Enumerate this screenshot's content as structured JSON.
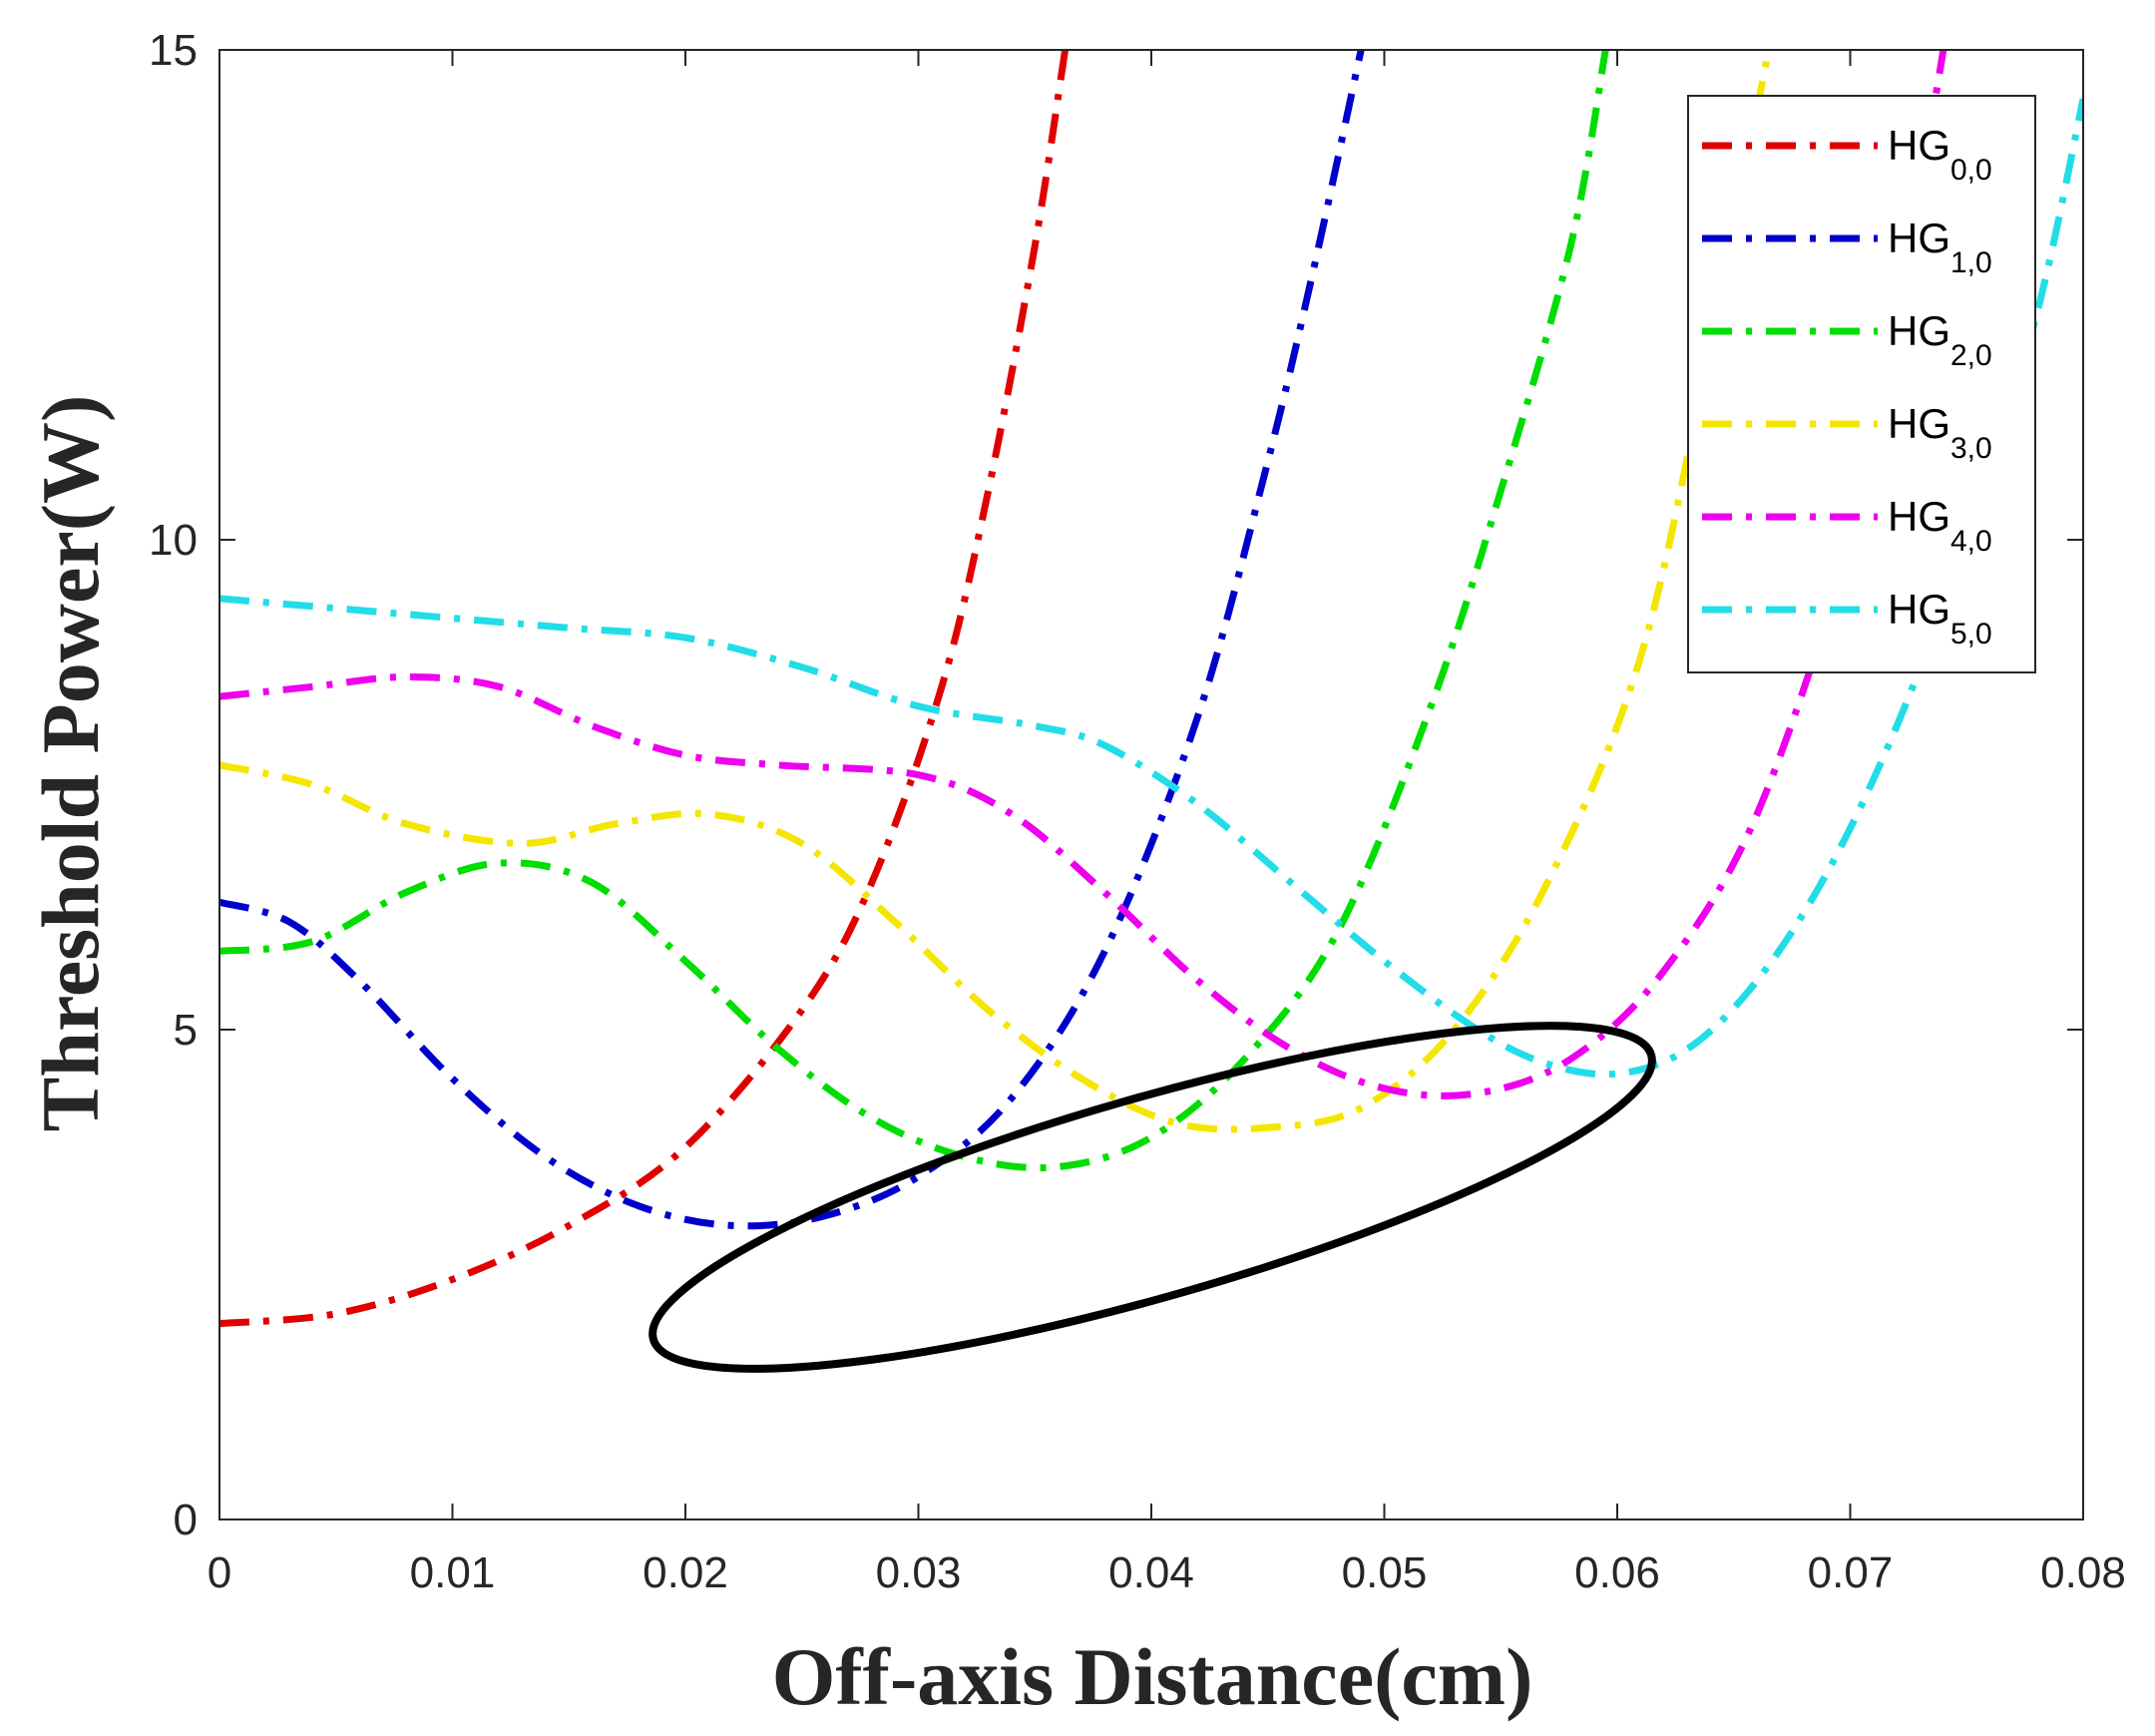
{
  "chart_data": {
    "type": "line",
    "title": "",
    "xlabel": "Off-axis Distance(cm)",
    "ylabel": "Threshold Power(W)",
    "xlim": [
      0,
      0.08
    ],
    "ylim": [
      0,
      15
    ],
    "x_ticks": [
      0,
      0.01,
      0.02,
      0.03,
      0.04,
      0.05,
      0.06,
      0.07,
      0.08
    ],
    "x_tick_labels": [
      "0",
      "0.01",
      "0.02",
      "0.03",
      "0.04",
      "0.05",
      "0.06",
      "0.07",
      "0.08"
    ],
    "y_ticks": [
      0,
      5,
      10,
      15
    ],
    "y_tick_labels": [
      "0",
      "5",
      "10",
      "15"
    ],
    "grid": false,
    "legend_position": "top-right",
    "series": [
      {
        "name": "HG0,0",
        "label_main": "HG",
        "label_sub": "0,0",
        "color": "#e00000",
        "dash": "dash-dot",
        "x": [
          0,
          0.005,
          0.01,
          0.015,
          0.02,
          0.025,
          0.028,
          0.031,
          0.033,
          0.035,
          0.0363
        ],
        "y": [
          2.0,
          2.1,
          2.45,
          3.0,
          3.8,
          5.2,
          6.5,
          8.5,
          10.5,
          13.0,
          15.0
        ]
      },
      {
        "name": "HG1,0",
        "label_main": "HG",
        "label_sub": "1,0",
        "color": "#0000cc",
        "dash": "dash-dot",
        "x": [
          0,
          0.003,
          0.006,
          0.01,
          0.014,
          0.018,
          0.022,
          0.026,
          0.03,
          0.034,
          0.038,
          0.042,
          0.045,
          0.047,
          0.049
        ],
        "y": [
          6.3,
          6.1,
          5.5,
          4.5,
          3.7,
          3.2,
          3.0,
          3.1,
          3.5,
          4.3,
          5.8,
          8.2,
          10.8,
          12.8,
          15.0
        ]
      },
      {
        "name": "HG2,0",
        "label_main": "HG",
        "label_sub": "2,0",
        "color": "#00dd00",
        "dash": "dash-dot",
        "x": [
          0,
          0.004,
          0.008,
          0.012,
          0.016,
          0.02,
          0.024,
          0.028,
          0.032,
          0.036,
          0.04,
          0.044,
          0.048,
          0.052,
          0.055,
          0.058,
          0.0595
        ],
        "y": [
          5.8,
          5.9,
          6.4,
          6.7,
          6.5,
          5.7,
          4.8,
          4.1,
          3.7,
          3.6,
          3.9,
          4.7,
          6.0,
          8.3,
          10.5,
          13.0,
          15.0
        ]
      },
      {
        "name": "HG3,0",
        "label_main": "HG",
        "label_sub": "3,0",
        "color": "#f5e600",
        "dash": "dash-dot",
        "x": [
          0,
          0.004,
          0.008,
          0.013,
          0.017,
          0.021,
          0.025,
          0.029,
          0.033,
          0.037,
          0.041,
          0.045,
          0.049,
          0.053,
          0.057,
          0.061,
          0.064,
          0.0665
        ],
        "y": [
          7.7,
          7.5,
          7.1,
          6.9,
          7.1,
          7.2,
          6.9,
          6.1,
          5.2,
          4.5,
          4.05,
          4.0,
          4.2,
          5.0,
          6.5,
          8.8,
          12.0,
          15.0
        ]
      },
      {
        "name": "HG4,0",
        "label_main": "HG",
        "label_sub": "4,0",
        "color": "#ee00ee",
        "dash": "dash-dot",
        "x": [
          0,
          0.004,
          0.008,
          0.012,
          0.016,
          0.02,
          0.024,
          0.03,
          0.034,
          0.038,
          0.042,
          0.046,
          0.05,
          0.054,
          0.058,
          0.062,
          0.066,
          0.07,
          0.072,
          0.074
        ],
        "y": [
          8.4,
          8.5,
          8.6,
          8.5,
          8.1,
          7.8,
          7.7,
          7.6,
          7.2,
          6.4,
          5.5,
          4.8,
          4.4,
          4.35,
          4.7,
          5.6,
          7.2,
          10.0,
          12.2,
          15.0
        ]
      },
      {
        "name": "HG5,0",
        "label_main": "HG",
        "label_sub": "5,0",
        "color": "#22dde8",
        "dash": "dash-dot",
        "x": [
          0,
          0.005,
          0.01,
          0.015,
          0.02,
          0.025,
          0.03,
          0.035,
          0.038,
          0.042,
          0.046,
          0.05,
          0.054,
          0.057,
          0.06,
          0.063,
          0.066,
          0.069,
          0.072,
          0.075,
          0.078,
          0.08
        ],
        "y": [
          9.4,
          9.3,
          9.2,
          9.1,
          9.0,
          8.7,
          8.3,
          8.1,
          7.9,
          7.3,
          6.5,
          5.7,
          5.0,
          4.65,
          4.55,
          4.8,
          5.5,
          6.6,
          8.1,
          10.0,
          12.3,
          14.5
        ]
      }
    ],
    "annotations": [
      {
        "type": "ellipse",
        "color": "#000000",
        "description": ""
      }
    ]
  }
}
